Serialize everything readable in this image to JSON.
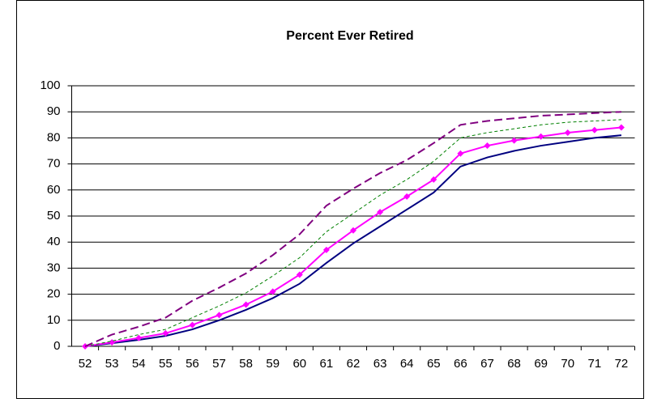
{
  "chart_data": {
    "type": "line",
    "title": "Percent Ever Retired",
    "categories": [
      52,
      53,
      54,
      55,
      56,
      57,
      58,
      59,
      60,
      61,
      62,
      63,
      64,
      65,
      66,
      67,
      68,
      69,
      70,
      71,
      72
    ],
    "series": [
      {
        "color": "#000080",
        "style": "solid",
        "values": [
          0,
          1.2,
          2.5,
          4,
          6.5,
          10,
          14,
          18.5,
          24,
          32,
          39.5,
          46,
          52.5,
          59,
          69,
          72.5,
          75,
          77,
          78.5,
          80,
          81
        ]
      },
      {
        "color": "#ff00ff",
        "style": "solid",
        "marker": "diamond",
        "values": [
          0,
          1.5,
          3.2,
          5,
          8.2,
          12,
          16,
          21,
          27.5,
          37,
          44.5,
          51.5,
          57.5,
          64,
          74,
          77,
          79,
          80.5,
          82,
          83,
          84
        ]
      },
      {
        "color": "#008000",
        "style": "dashed",
        "values": [
          0,
          2,
          4.5,
          6.5,
          11,
          15.5,
          20.5,
          27,
          34,
          44,
          51,
          58,
          64,
          71,
          80,
          82,
          83.5,
          85,
          86,
          86.5,
          87
        ]
      },
      {
        "color": "#800080",
        "style": "long-dashed",
        "values": [
          0,
          4.5,
          7.5,
          11,
          17.5,
          22.5,
          28,
          35,
          43,
          54,
          60.5,
          66.5,
          71.5,
          78,
          85,
          86.5,
          87.5,
          88.5,
          89,
          89.5,
          90
        ]
      }
    ],
    "ylim": [
      0,
      100
    ],
    "yticks": [
      0,
      10,
      20,
      30,
      40,
      50,
      60,
      70,
      80,
      90,
      100
    ],
    "grid": true
  }
}
